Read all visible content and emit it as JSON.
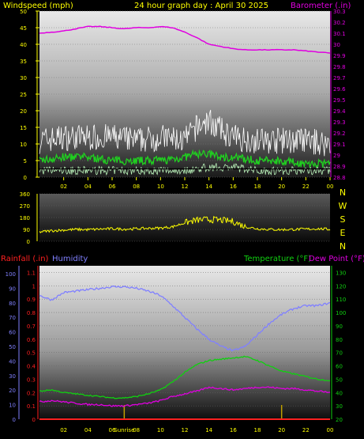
{
  "title": "24 hour graph day : April 30 2025",
  "colors": {
    "background": "#000000",
    "barometer": "#e000e0",
    "humidity": "#8080ff",
    "temperature": "#10d010",
    "dewpoint": "#e000e0",
    "rainfall": "#ff2020",
    "wind_dir": "#ffff00",
    "wind_gust": "#ffffff",
    "wind_avg": "#20d020",
    "wind_min": "#b8f0b8",
    "axis_text": "#ffff00",
    "sunrise": "#c0a000"
  },
  "chart_data": [
    {
      "type": "line",
      "panel": "wind-barometer",
      "title": "24 hour graph day : April 30 2025",
      "ylabel_left": "Windspeed (mph)",
      "ylabel_right": "Barometer (.in)",
      "x_ticks": [
        "02",
        "04",
        "06",
        "08",
        "10",
        "12",
        "14",
        "16",
        "18",
        "20",
        "22",
        "00"
      ],
      "left_ticks": [
        0,
        5,
        10,
        15,
        20,
        25,
        30,
        35,
        40,
        45,
        50
      ],
      "left_range": [
        0,
        50
      ],
      "right_ticks": [
        "28.8",
        "28.9",
        "29",
        "29.1",
        "29.2",
        "29.3",
        "29.4",
        "29.5",
        "29.6",
        "29.7",
        "29.8",
        "29.9",
        "30",
        "30.1",
        "30.2",
        "30.3"
      ],
      "right_range": [
        28.8,
        30.3
      ],
      "series": [
        {
          "name": "Barometer",
          "axis": "right",
          "x": [
            0,
            1,
            2,
            3,
            4,
            5,
            6,
            7,
            8,
            9,
            10,
            11,
            12,
            13,
            14,
            15,
            16,
            17,
            18,
            19,
            20,
            21,
            22,
            23,
            24
          ],
          "values": [
            30.1,
            30.11,
            30.12,
            30.14,
            30.16,
            30.16,
            30.15,
            30.14,
            30.15,
            30.15,
            30.16,
            30.15,
            30.11,
            30.06,
            30.0,
            29.98,
            29.96,
            29.95,
            29.95,
            29.95,
            29.95,
            29.95,
            29.94,
            29.93,
            29.92
          ]
        },
        {
          "name": "Wind gust",
          "axis": "left",
          "x": [
            0,
            2,
            4,
            6,
            8,
            10,
            12,
            13,
            14,
            15,
            16,
            18,
            20,
            22,
            24
          ],
          "values": [
            11,
            12,
            12,
            12,
            11,
            12,
            11,
            15,
            17,
            14,
            12,
            11,
            11,
            11,
            10
          ]
        },
        {
          "name": "Wind average",
          "axis": "left",
          "x": [
            0,
            2,
            4,
            6,
            8,
            10,
            12,
            13,
            14,
            15,
            16,
            18,
            20,
            22,
            24
          ],
          "values": [
            5,
            6,
            6,
            5,
            5,
            5,
            6,
            7,
            7,
            6,
            6,
            5,
            5,
            4,
            4
          ]
        },
        {
          "name": "Wind minimum",
          "axis": "left",
          "x": [
            0,
            2,
            4,
            6,
            8,
            10,
            12,
            14,
            16,
            18,
            20,
            22,
            24
          ],
          "values": [
            2,
            2,
            2,
            2,
            2,
            2,
            2,
            3,
            3,
            2,
            2,
            2,
            2
          ]
        }
      ]
    },
    {
      "type": "line",
      "panel": "wind-direction",
      "left_ticks": [
        0,
        90,
        180,
        270,
        360
      ],
      "left_range": [
        0,
        360
      ],
      "compass": [
        "N",
        "W",
        "S",
        "E",
        "N"
      ],
      "x_ticks": [
        "02",
        "04",
        "06",
        "08",
        "10",
        "12",
        "14",
        "16",
        "18",
        "20",
        "22",
        "00"
      ],
      "series": [
        {
          "name": "Wind direction",
          "x": [
            0,
            1,
            2,
            3,
            4,
            5,
            6,
            7,
            8,
            9,
            10,
            11,
            12,
            13,
            14,
            15,
            16,
            17,
            18,
            19,
            20,
            21,
            22,
            23,
            24
          ],
          "values": [
            70,
            80,
            85,
            90,
            88,
            92,
            95,
            92,
            95,
            98,
            100,
            110,
            140,
            160,
            165,
            160,
            150,
            110,
            95,
            90,
            88,
            90,
            92,
            95,
            90
          ]
        }
      ]
    },
    {
      "type": "line",
      "panel": "humidity-temperature",
      "ylabel_left_1": "Rainfall (.in)",
      "ylabel_left_2": "Humidity",
      "ylabel_right_1": "Temperature (°F)",
      "ylabel_right_2": "Dew Point (°F)",
      "x_ticks": [
        "02",
        "04",
        "06",
        "08",
        "10",
        "12",
        "14",
        "16",
        "18",
        "20",
        "22",
        "00"
      ],
      "sunrise_label": "Sunrise",
      "sunset_x": 20,
      "sunrise_x": 7,
      "humidity_ticks": [
        0,
        10,
        20,
        30,
        40,
        50,
        60,
        70,
        80,
        90,
        100
      ],
      "rain_ticks": [
        "0",
        "0.1",
        "0.2",
        "0.3",
        "0.4",
        "0.5",
        "0.6",
        "0.7",
        "0.8",
        "0.9",
        "1",
        "1.1"
      ],
      "temp_ticks": [
        20,
        30,
        40,
        50,
        60,
        70,
        80,
        90,
        100,
        110,
        120,
        130
      ],
      "humidity_range": [
        0,
        100
      ],
      "temp_range": [
        20,
        135
      ],
      "series": [
        {
          "name": "Humidity",
          "axis": "left",
          "x": [
            0,
            1,
            2,
            3,
            4,
            5,
            6,
            7,
            8,
            9,
            10,
            11,
            12,
            13,
            14,
            15,
            16,
            17,
            18,
            19,
            20,
            21,
            22,
            23,
            24
          ],
          "values": [
            85,
            82,
            87,
            88,
            89,
            90,
            91,
            91,
            90,
            88,
            85,
            78,
            70,
            62,
            55,
            50,
            47,
            50,
            58,
            66,
            72,
            76,
            78,
            78,
            80
          ]
        },
        {
          "name": "Temperature",
          "axis": "right",
          "x": [
            0,
            1,
            2,
            3,
            4,
            5,
            6,
            7,
            8,
            9,
            10,
            11,
            12,
            13,
            14,
            15,
            16,
            17,
            18,
            19,
            20,
            21,
            22,
            23,
            24
          ],
          "values": [
            41,
            42,
            40,
            39,
            38,
            37,
            36,
            36,
            37,
            39,
            42,
            48,
            55,
            61,
            64,
            65,
            66,
            67,
            64,
            60,
            56,
            54,
            52,
            50,
            49
          ]
        },
        {
          "name": "Dew Point",
          "axis": "right",
          "x": [
            0,
            1,
            2,
            3,
            4,
            5,
            6,
            7,
            8,
            9,
            10,
            11,
            12,
            13,
            14,
            15,
            16,
            17,
            18,
            19,
            20,
            21,
            22,
            23,
            24
          ],
          "values": [
            33,
            34,
            33,
            32,
            31,
            31,
            30,
            30,
            31,
            32,
            34,
            37,
            39,
            41,
            44,
            43,
            42,
            43,
            44,
            44,
            43,
            43,
            42,
            41,
            40
          ]
        },
        {
          "name": "Rainfall",
          "axis": "left_rain",
          "x": [
            0,
            24
          ],
          "values": [
            0,
            0
          ]
        }
      ]
    }
  ]
}
